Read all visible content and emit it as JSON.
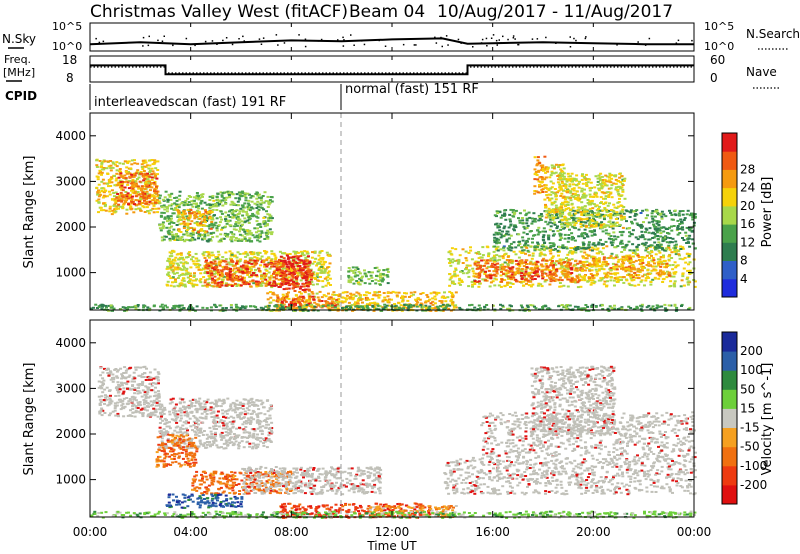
{
  "header": {
    "radar": "Christmas Valley West (fitACF)",
    "beam": "Beam 04",
    "date_range": "10/Aug/2017 - 11/Aug/2017"
  },
  "labels": {
    "nsky": "N.Sky",
    "nsearch": "N.Search",
    "freq_line1": "Freq.",
    "freq_line2": "[MHz]",
    "nave": "Nave",
    "cpid": "CPID",
    "ylabel": "Slant Range [km]",
    "xlabel": "Time UT"
  },
  "ticks": {
    "noise_left": [
      "10^5",
      "10^0"
    ],
    "noise_right": [
      "10^5",
      "10^0"
    ],
    "freq_left": [
      "18",
      "8"
    ],
    "freq_right": [
      "60",
      "0"
    ],
    "range": [
      "1000",
      "2000",
      "3000",
      "4000"
    ],
    "time": [
      "00:00",
      "04:00",
      "08:00",
      "12:00",
      "16:00",
      "20:00",
      "00:00"
    ]
  },
  "cpid_segments": [
    {
      "label": "interleavedscan (fast) 191 RF",
      "start_h": 0,
      "end_h": 10
    },
    {
      "label": "normal (fast) 151 RF",
      "start_h": 10,
      "end_h": 24
    }
  ],
  "colors": {
    "power": [
      "#1f2cdc",
      "#2f5fc8",
      "#2e7d4f",
      "#4aa24a",
      "#a8d84a",
      "#f5d20a",
      "#f59a10",
      "#f05a12",
      "#e11a1a"
    ],
    "velocity": [
      "#1a2a9a",
      "#2b5fa8",
      "#2e8a3e",
      "#6dcf3a",
      "#c8c8c0",
      "#f5a020",
      "#f07010",
      "#ee3a10",
      "#e01010"
    ],
    "ground_scatter": "#c0c0b8"
  },
  "chart_data": [
    {
      "type": "line",
      "title": "N.Sky / N.Search",
      "x_unit": "hours UT",
      "x": [
        0,
        2,
        4,
        6,
        8,
        10,
        12,
        14,
        15,
        16,
        18,
        20,
        22,
        24
      ],
      "series": [
        {
          "name": "N.Sky",
          "values": [
            1.0,
            1.4,
            1.0,
            1.4,
            1.8,
            1.6,
            2.0,
            2.2,
            1.1,
            1.2,
            1.4,
            1.2,
            1.0,
            1.0
          ]
        }
      ],
      "ylim": [
        0,
        5
      ],
      "scale": "log"
    },
    {
      "type": "line",
      "title": "Freq. [MHz] / Nave",
      "x_unit": "hours UT",
      "series": [
        {
          "name": "Freq.",
          "x": [
            0,
            3.0,
            3.0,
            15.0,
            15.0,
            24
          ],
          "values": [
            14.5,
            14.5,
            10.8,
            10.8,
            14.5,
            14.5
          ]
        },
        {
          "name": "Nave",
          "x": [
            0,
            3.0,
            3.0,
            15.0,
            15.0,
            24
          ],
          "values": [
            35,
            35,
            20,
            20,
            35,
            35
          ]
        }
      ],
      "ylim_left": [
        8,
        18
      ],
      "ylim_right": [
        0,
        60
      ]
    },
    {
      "type": "heatmap",
      "title": "Power [dB]",
      "x_unit": "hours UT",
      "y_unit": "km",
      "xlim": [
        0,
        24
      ],
      "ylim": [
        180,
        4500
      ],
      "colorbar_ticks": [
        4,
        8,
        12,
        16,
        20,
        24,
        28
      ],
      "patches": [
        {
          "t0": 0.2,
          "t1": 2.7,
          "r0": 2300,
          "r1": 3500,
          "db": 20
        },
        {
          "t0": 1.0,
          "t1": 2.6,
          "r0": 2500,
          "r1": 3200,
          "db": 26
        },
        {
          "t0": 2.7,
          "t1": 7.2,
          "r0": 1700,
          "r1": 2800,
          "db": 14
        },
        {
          "t0": 3.4,
          "t1": 4.8,
          "r0": 1900,
          "r1": 2400,
          "db": 22
        },
        {
          "t0": 3.0,
          "t1": 9.5,
          "r0": 700,
          "r1": 1500,
          "db": 18
        },
        {
          "t0": 4.5,
          "t1": 8.8,
          "r0": 700,
          "r1": 1300,
          "db": 27
        },
        {
          "t0": 7.5,
          "t1": 8.7,
          "r0": 600,
          "r1": 1400,
          "db": 29
        },
        {
          "t0": 7.0,
          "t1": 14.5,
          "r0": 180,
          "r1": 600,
          "db": 21
        },
        {
          "t0": 7.3,
          "t1": 9.8,
          "r0": 250,
          "r1": 500,
          "db": 27
        },
        {
          "t0": 10.2,
          "t1": 11.8,
          "r0": 750,
          "r1": 1150,
          "db": 14
        },
        {
          "t0": 14.2,
          "t1": 24.0,
          "r0": 700,
          "r1": 1600,
          "db": 18
        },
        {
          "t0": 15.2,
          "t1": 19.5,
          "r0": 800,
          "r1": 1300,
          "db": 26
        },
        {
          "t0": 19.5,
          "t1": 23.0,
          "r0": 900,
          "r1": 1400,
          "db": 22
        },
        {
          "t0": 16.0,
          "t1": 24.0,
          "r0": 1500,
          "r1": 2400,
          "db": 11
        },
        {
          "t0": 17.6,
          "t1": 18.1,
          "r0": 2700,
          "r1": 3600,
          "db": 23
        },
        {
          "t0": 18.0,
          "t1": 18.9,
          "r0": 2100,
          "r1": 3400,
          "db": 19
        },
        {
          "t0": 18.6,
          "t1": 21.2,
          "r0": 2000,
          "r1": 3200,
          "db": 18
        },
        {
          "t0": 0.0,
          "t1": 24.0,
          "r0": 180,
          "r1": 320,
          "db": 12
        }
      ]
    },
    {
      "type": "heatmap",
      "title": "Velocity [m s^-1]",
      "x_unit": "hours UT",
      "y_unit": "km",
      "xlim": [
        0,
        24
      ],
      "ylim": [
        180,
        4500
      ],
      "colorbar_ticks": [
        200,
        100,
        50,
        15,
        -15,
        -50,
        -100,
        -200
      ],
      "patches": [
        {
          "t0": 0.3,
          "t1": 2.7,
          "r0": 2400,
          "r1": 3500,
          "v": 0,
          "gs": true
        },
        {
          "t0": 2.7,
          "t1": 7.2,
          "r0": 1700,
          "r1": 2800,
          "v": 0,
          "gs": true
        },
        {
          "t0": 2.6,
          "t1": 4.2,
          "r0": 1300,
          "r1": 2000,
          "v": -60
        },
        {
          "t0": 4.0,
          "t1": 8.0,
          "r0": 700,
          "r1": 1200,
          "v": -70
        },
        {
          "t0": 6.0,
          "t1": 11.5,
          "r0": 700,
          "r1": 1300,
          "v": 0,
          "gs": true
        },
        {
          "t0": 3.0,
          "t1": 6.0,
          "r0": 400,
          "r1": 700,
          "v": 60
        },
        {
          "t0": 7.5,
          "t1": 13.5,
          "r0": 180,
          "r1": 500,
          "v": -110
        },
        {
          "t0": 11.0,
          "t1": 14.5,
          "r0": 200,
          "r1": 450,
          "v": -40
        },
        {
          "t0": 14.0,
          "t1": 24.0,
          "r0": 700,
          "r1": 1500,
          "v": 0,
          "gs": true
        },
        {
          "t0": 15.5,
          "t1": 24.0,
          "r0": 1500,
          "r1": 2500,
          "v": 0,
          "gs": true
        },
        {
          "t0": 17.5,
          "t1": 20.8,
          "r0": 2000,
          "r1": 3500,
          "v": 0,
          "gs": true
        },
        {
          "t0": 0.0,
          "t1": 24.0,
          "r0": 180,
          "r1": 320,
          "v": 40
        }
      ]
    }
  ]
}
